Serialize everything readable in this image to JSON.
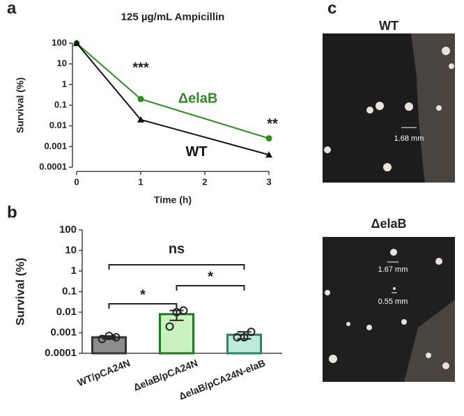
{
  "panel_labels": [
    "a",
    "b",
    "c"
  ],
  "chart_data": [
    {
      "type": "line",
      "title": "125 µg/mL Ampicillin",
      "x_label": "Time (h)",
      "y_label": "Survival (%)",
      "log_y": true,
      "xlim": [
        0,
        3
      ],
      "xticks": [
        0,
        1,
        2,
        3
      ],
      "ylim": [
        0.0001,
        100
      ],
      "yticks": [
        100,
        10,
        1,
        0.1,
        0.01,
        0.001,
        0.0001
      ],
      "x": [
        0,
        1,
        3
      ],
      "series": [
        {
          "name": "ΔelaB",
          "color": "#2e8b22",
          "marker": "circle",
          "values": [
            100,
            0.2,
            0.0025
          ]
        },
        {
          "name": "WT",
          "color": "#111111",
          "marker": "triangle",
          "values": [
            100,
            0.02,
            0.0004
          ]
        }
      ],
      "annotations": [
        {
          "text": "***",
          "x": 1
        },
        {
          "text": "**",
          "x": 3
        }
      ]
    },
    {
      "type": "bar",
      "y_label": "Survival (%)",
      "log_y": true,
      "ylim": [
        0.0001,
        100
      ],
      "yticks": [
        100,
        10,
        1,
        0.1,
        0.01,
        0.001,
        0.0001
      ],
      "categories": [
        "WT/pCA24N",
        "ΔelaB/pCA24N",
        "ΔelaB/pCA24N-elaB"
      ],
      "colors": [
        "#8c8c8c",
        "#c9f2c0",
        "#bfeadb"
      ],
      "edge_colors": [
        "#333333",
        "#1d7a1d",
        "#1f8a63"
      ],
      "values": [
        0.0006,
        0.008,
        0.0008
      ],
      "errors": [
        0.0001,
        0.004,
        0.0003
      ],
      "points": [
        [
          0.0005,
          0.0007,
          0.0006
        ],
        [
          0.002,
          0.01,
          0.012
        ],
        [
          0.0006,
          0.0006,
          0.0011
        ]
      ],
      "significance": [
        {
          "from": 0,
          "to": 2,
          "label": "ns"
        },
        {
          "from": 0,
          "to": 1,
          "label": "*"
        },
        {
          "from": 1,
          "to": 2,
          "label": "*"
        }
      ]
    }
  ],
  "photo_panel": {
    "images": [
      {
        "title": "WT",
        "scale_labels": [
          "1.68 mm"
        ]
      },
      {
        "title": "ΔelaB",
        "scale_labels": [
          "1.67 mm",
          "0.55 mm"
        ]
      }
    ]
  }
}
